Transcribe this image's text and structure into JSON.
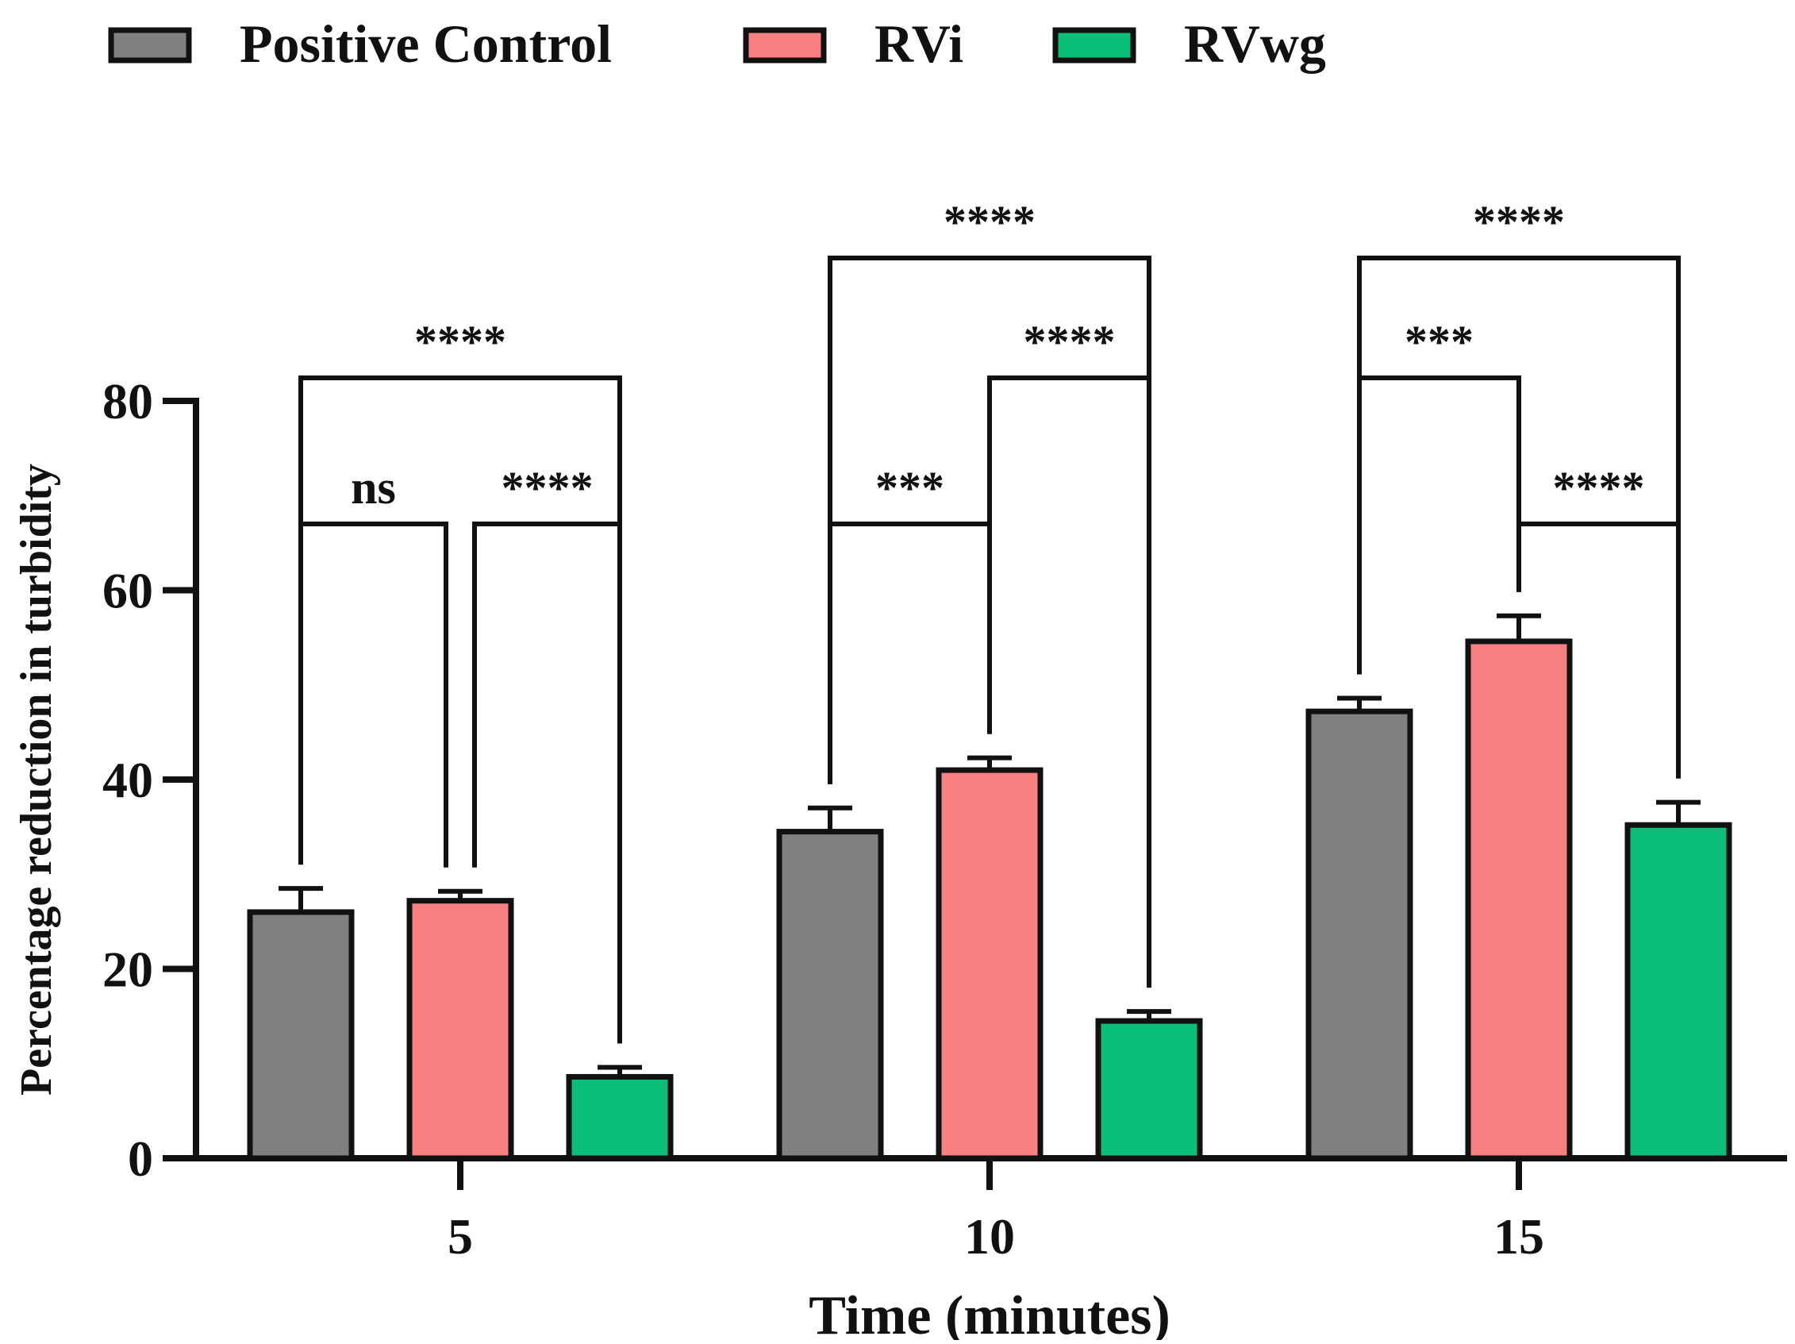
{
  "chart_data": {
    "type": "bar",
    "title": "",
    "xlabel": "Time (minutes)",
    "ylabel": "Percentage reduction in turbidity",
    "categories": [
      "5",
      "10",
      "15"
    ],
    "ylim": [
      0,
      80
    ],
    "yticks": [
      0,
      20,
      40,
      60,
      80
    ],
    "grid": false,
    "legend_position": "top-left",
    "series": [
      {
        "name": "Positive Control",
        "color": "#808080",
        "values": [
          26,
          34.5,
          47.2
        ],
        "errors": [
          2.5,
          2.5,
          1.4
        ]
      },
      {
        "name": "RVi",
        "color": "#F88080",
        "values": [
          27.2,
          41,
          54.6
        ],
        "errors": [
          1.0,
          1.3,
          2.7
        ]
      },
      {
        "name": "RVwg",
        "color": "#0BBE78",
        "values": [
          8.6,
          14.5,
          35.2
        ],
        "errors": [
          1.0,
          1.0,
          2.4
        ]
      }
    ],
    "annotations": [
      {
        "category": 0,
        "from": "Positive Control",
        "to": "RVi",
        "label": "ns",
        "tier": 1
      },
      {
        "category": 0,
        "from": "RVi",
        "to": "RVwg",
        "label": "****",
        "tier": 1
      },
      {
        "category": 0,
        "from": "Positive Control",
        "to": "RVwg",
        "label": "****",
        "tier": 2
      },
      {
        "category": 1,
        "from": "Positive Control",
        "to": "RVi",
        "label": "***",
        "tier": 1
      },
      {
        "category": 1,
        "from": "RVi",
        "to": "RVwg",
        "label": "****",
        "tier": 2
      },
      {
        "category": 1,
        "from": "Positive Control",
        "to": "RVwg",
        "label": "****",
        "tier": 3
      },
      {
        "category": 2,
        "from": "RVi",
        "to": "RVwg",
        "label": "****",
        "tier": 1
      },
      {
        "category": 2,
        "from": "Positive Control",
        "to": "RVi",
        "label": "***",
        "tier": 2
      },
      {
        "category": 2,
        "from": "Positive Control",
        "to": "RVwg",
        "label": "****",
        "tier": 3
      }
    ]
  }
}
